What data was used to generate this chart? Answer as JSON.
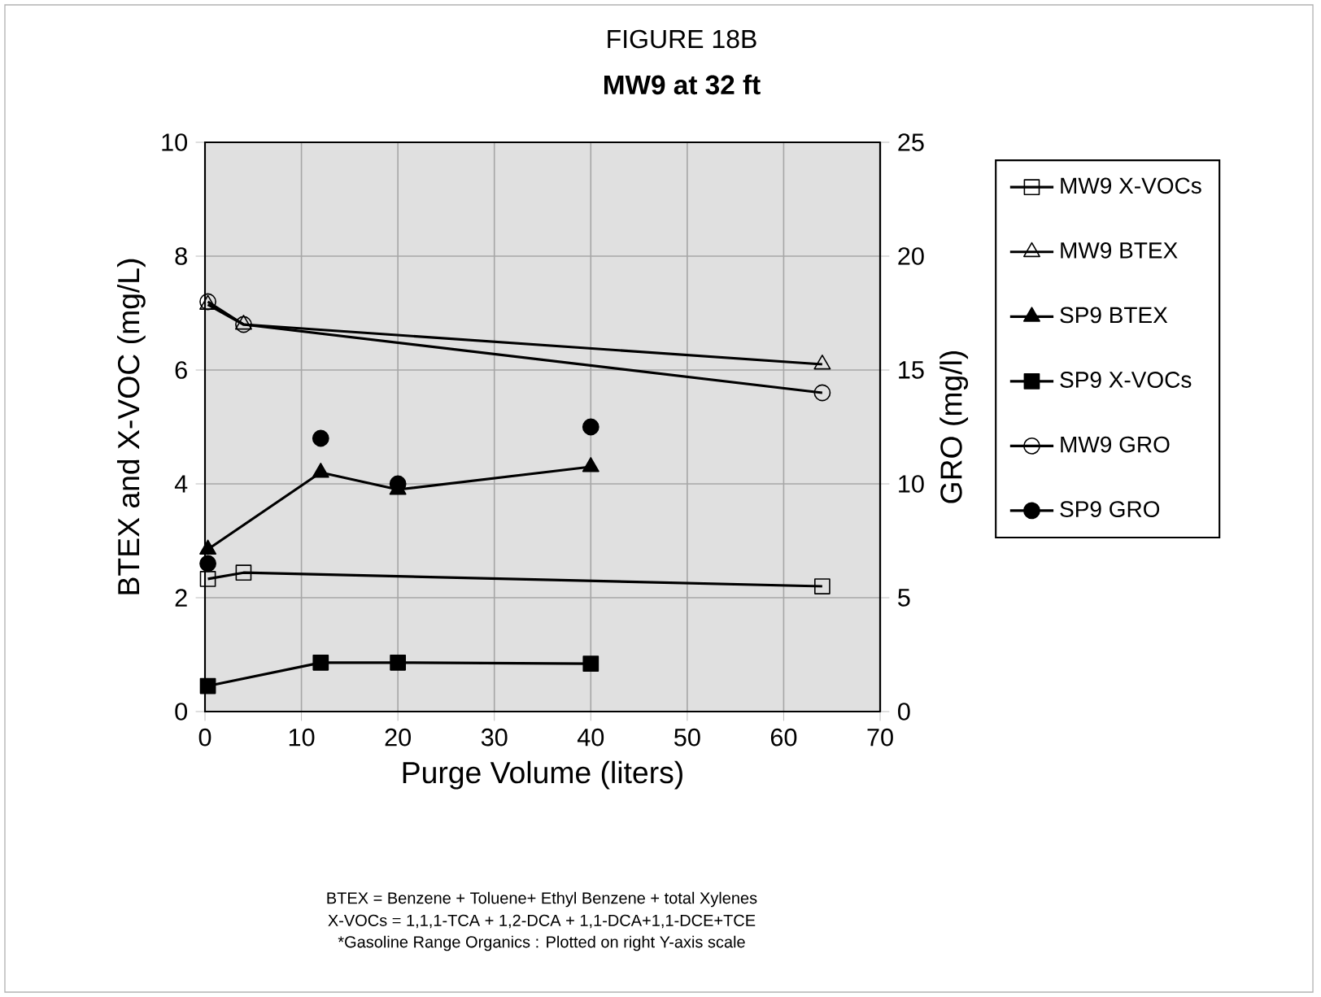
{
  "chart_data": {
    "type": "line",
    "subtitle": "FIGURE 18B",
    "title": "MW9 at 32 ft",
    "xlabel": "Purge Volume (liters)",
    "ylabel": "BTEX and X-VOC (mg/L)",
    "y2label": "GRO (mg/l)",
    "xlim": [
      0,
      70
    ],
    "xticks": [
      0,
      10,
      20,
      30,
      40,
      50,
      60,
      70
    ],
    "ylim": [
      0,
      10
    ],
    "yticks": [
      0,
      2,
      4,
      6,
      8,
      10
    ],
    "y2lim": [
      0,
      25
    ],
    "y2ticks": [
      0,
      5,
      10,
      15,
      20,
      25
    ],
    "grid": true,
    "legend": "right",
    "series": [
      {
        "name": "MW9  X-VOCs",
        "color": "#000000",
        "marker": "square",
        "x": [
          0.3,
          4,
          64
        ],
        "values": [
          2.33,
          2.44,
          2.2
        ]
      },
      {
        "name": "MW9  BTEX",
        "color": "#000000",
        "marker": "triangle",
        "x": [
          0.3,
          4,
          64
        ],
        "values": [
          7.15,
          6.8,
          6.1
        ]
      },
      {
        "name": "SP9 BTEX",
        "color": "#000000",
        "marker": "triangle",
        "x": [
          0.3,
          12,
          20,
          40
        ],
        "values": [
          2.85,
          4.2,
          3.9,
          4.3
        ]
      },
      {
        "name": "SP9  X-VOCs",
        "color": "#000000",
        "marker": "square",
        "x": [
          0.3,
          12,
          20,
          40
        ],
        "values": [
          0.45,
          0.86,
          0.86,
          0.84
        ]
      },
      {
        "name": "MW9  GRO",
        "color": "#000000",
        "axis": "y2",
        "marker": "circle",
        "x": [
          0.3,
          4,
          64
        ],
        "values": [
          18,
          17,
          14
        ]
      },
      {
        "name": "SP9 GRO",
        "color": "#000000",
        "axis": "y2",
        "type": "scatter",
        "marker": "circle",
        "x": [
          0.3,
          12,
          20,
          40
        ],
        "values": [
          6.5,
          12,
          10,
          12.5
        ]
      }
    ],
    "annotations": [
      "BTEX = Benzene + Toluene+ Ethyl Benzene + total Xylenes",
      "X-VOCs = 1,1,1-TCA + 1,2-DCA + 1,1-DCA+1,1-DCE+TCE",
      "*Gasoline Range Organics : Plotted on right Y-axis scale"
    ]
  }
}
